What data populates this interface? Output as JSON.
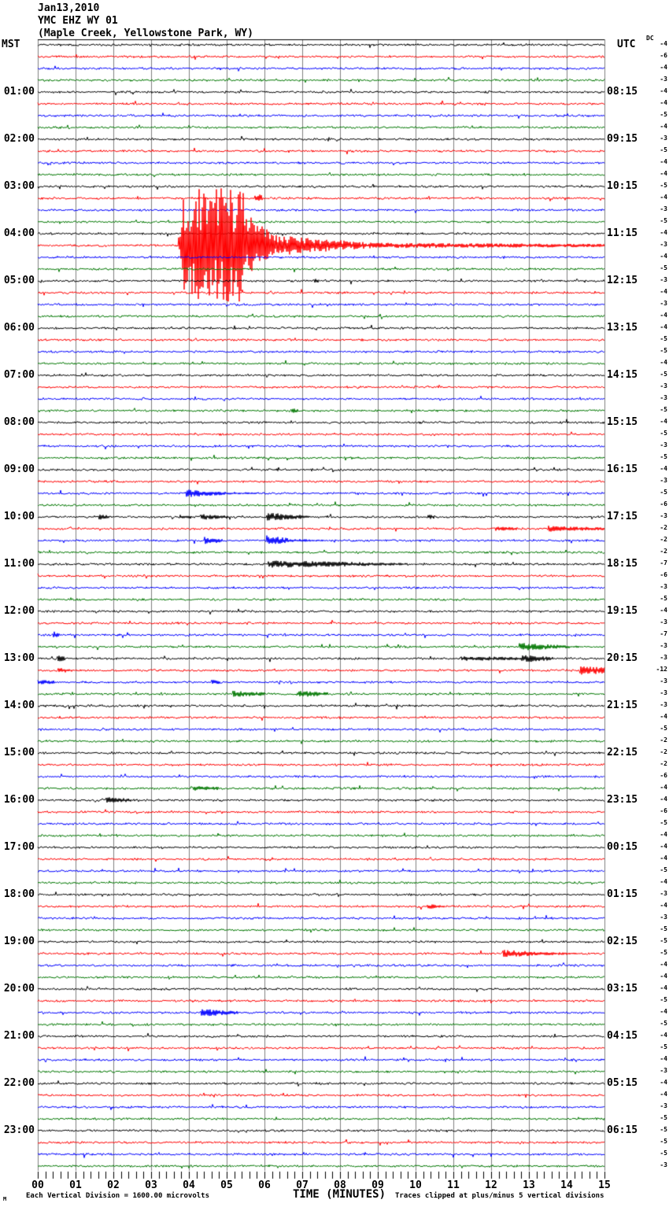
{
  "header": {
    "date": "Jan13,2010",
    "station": "YMC EHZ WY 01",
    "location": "(Maple Creek, Yellowstone Park, WY)",
    "left_tz": "MST",
    "right_tz": "UTC",
    "dc_label": "DC"
  },
  "footer": {
    "mark": "M",
    "scale_note": "Each Vertical Division = 1600.00 microvolts",
    "xaxis_title": "TIME (MINUTES)",
    "clip_note": "Traces clipped at plus/minus 5 vertical divisions"
  },
  "chart_data": {
    "type": "line",
    "subtype": "helicorder",
    "title": "YMC EHZ WY 01 (Maple Creek, Yellowstone Park, WY) Jan13,2010",
    "xlabel": "TIME (MINUTES)",
    "x_range_minutes": [
      0,
      15
    ],
    "minutes_per_row": 15,
    "rows_per_hour": 4,
    "row_count": 96,
    "clip_divisions": 5,
    "microvolts_per_division": 1600,
    "grid_on": true,
    "grid_color": "#7f7f7f",
    "trace_color_cycle": [
      "#000000",
      "#ff0000",
      "#0000ff",
      "#007700"
    ],
    "minute_labels": [
      "00",
      "01",
      "02",
      "03",
      "04",
      "05",
      "06",
      "07",
      "08",
      "09",
      "10",
      "11",
      "12",
      "13",
      "14",
      "15"
    ],
    "mst_labels": [
      "01:00",
      "02:00",
      "03:00",
      "04:00",
      "05:00",
      "06:00",
      "07:00",
      "08:00",
      "09:00",
      "10:00",
      "11:00",
      "12:00",
      "13:00",
      "14:00",
      "15:00",
      "16:00",
      "17:00",
      "18:00",
      "19:00",
      "20:00",
      "21:00",
      "22:00",
      "23:00"
    ],
    "utc_labels": [
      "08:15",
      "09:15",
      "10:15",
      "11:15",
      "12:15",
      "13:15",
      "14:15",
      "15:15",
      "16:15",
      "17:15",
      "18:15",
      "19:15",
      "20:15",
      "21:15",
      "22:15",
      "23:15",
      "00:15",
      "01:15",
      "02:15",
      "03:15",
      "04:15",
      "05:15",
      "06:15"
    ],
    "dc_offsets": [
      -4,
      -6,
      -4,
      -3,
      -4,
      -4,
      -5,
      -4,
      -3,
      -5,
      -4,
      -4,
      -5,
      -4,
      -3,
      -5,
      -4,
      -3,
      -4,
      -5,
      -3,
      -4,
      -3,
      -4,
      -4,
      -5,
      -5,
      -4,
      -5,
      -3,
      -3,
      -5,
      -4,
      -5,
      -3,
      -5,
      -4,
      -3,
      -5,
      -6,
      -3,
      -2,
      -2,
      -2,
      -7,
      -6,
      -3,
      -5,
      -4,
      -3,
      -7,
      -3,
      -3,
      -12,
      -3,
      -3,
      -3,
      -4,
      -5,
      -2,
      -2,
      -2,
      -6,
      -4,
      -4,
      -6,
      -5,
      -4,
      -4,
      -4,
      -5,
      -4,
      -3,
      -4,
      -3,
      -5,
      -5,
      -5,
      -4,
      -4,
      -4,
      -5,
      -4,
      -5,
      -4,
      -5,
      -4,
      -3,
      -4,
      -4,
      -3,
      -5,
      -5,
      -5,
      -5,
      -3
    ],
    "main_event": {
      "row": 17,
      "mst_time": "04:15",
      "utc_time": "11:15",
      "description": "Large clipped earthquake starting ~minute 3.8, coda decaying to end of row"
    },
    "events": [
      {
        "row": 13,
        "m0": 5.75,
        "m1": 5.95,
        "a0": 6,
        "a1": 5
      },
      {
        "row": 17,
        "m0": 3.72,
        "m1": 3.85,
        "a0": 8,
        "a1": 45
      },
      {
        "row": 17,
        "m0": 3.85,
        "m1": 5.45,
        "a0": 75,
        "a1": 75,
        "clip": true
      },
      {
        "row": 17,
        "m0": 5.45,
        "m1": 6.3,
        "a0": 42,
        "a1": 14
      },
      {
        "row": 17,
        "m0": 6.3,
        "m1": 8.7,
        "a0": 13,
        "a1": 4
      },
      {
        "row": 17,
        "m0": 8.7,
        "m1": 15,
        "a0": 3.5,
        "a1": 2
      },
      {
        "row": 20,
        "m0": 7.3,
        "m1": 7.45,
        "a0": 3,
        "a1": 2
      },
      {
        "row": 31,
        "m0": 6.7,
        "m1": 6.9,
        "a0": 3,
        "a1": 2
      },
      {
        "row": 38,
        "m0": 3.9,
        "m1": 4.9,
        "a0": 5,
        "a1": 2
      },
      {
        "row": 38,
        "m0": 4.9,
        "m1": 5.8,
        "a0": 2,
        "a1": 1
      },
      {
        "row": 40,
        "m0": 1.6,
        "m1": 1.9,
        "a0": 4,
        "a1": 2
      },
      {
        "row": 40,
        "m0": 3.75,
        "m1": 4.1,
        "a0": 3,
        "a1": 2
      },
      {
        "row": 40,
        "m0": 4.3,
        "m1": 5.05,
        "a0": 4,
        "a1": 2
      },
      {
        "row": 40,
        "m0": 6.05,
        "m1": 6.7,
        "a0": 6,
        "a1": 3
      },
      {
        "row": 40,
        "m0": 6.7,
        "m1": 7.2,
        "a0": 3,
        "a1": 2
      },
      {
        "row": 40,
        "m0": 10.3,
        "m1": 10.5,
        "a0": 3,
        "a1": 2
      },
      {
        "row": 41,
        "m0": 12.1,
        "m1": 12.7,
        "a0": 2.5,
        "a1": 2
      },
      {
        "row": 41,
        "m0": 13.5,
        "m1": 14.2,
        "a0": 4,
        "a1": 2.5
      },
      {
        "row": 41,
        "m0": 14.2,
        "m1": 15,
        "a0": 2.5,
        "a1": 2
      },
      {
        "row": 42,
        "m0": 4.4,
        "m1": 4.9,
        "a0": 5,
        "a1": 2
      },
      {
        "row": 42,
        "m0": 6.05,
        "m1": 6.8,
        "a0": 7,
        "a1": 2
      },
      {
        "row": 42,
        "m0": 6.8,
        "m1": 7.6,
        "a0": 2,
        "a1": 1
      },
      {
        "row": 44,
        "m0": 6.1,
        "m1": 8.8,
        "a0": 4.5,
        "a1": 2.5
      },
      {
        "row": 44,
        "m0": 8.8,
        "m1": 9.8,
        "a0": 2,
        "a1": 1.5
      },
      {
        "row": 50,
        "m0": 0.38,
        "m1": 0.58,
        "a0": 5,
        "a1": 3
      },
      {
        "row": 51,
        "m0": 12.75,
        "m1": 13.9,
        "a0": 5,
        "a1": 2
      },
      {
        "row": 51,
        "m0": 13.9,
        "m1": 14.4,
        "a0": 2,
        "a1": 1
      },
      {
        "row": 52,
        "m0": 0.52,
        "m1": 0.72,
        "a0": 4,
        "a1": 3
      },
      {
        "row": 52,
        "m0": 11.2,
        "m1": 12.8,
        "a0": 3,
        "a1": 2
      },
      {
        "row": 52,
        "m0": 12.8,
        "m1": 13.65,
        "a0": 5,
        "a1": 2
      },
      {
        "row": 53,
        "m0": 0.54,
        "m1": 0.92,
        "a0": 3,
        "a1": 2
      },
      {
        "row": 53,
        "m0": 14.35,
        "m1": 15,
        "a0": 6,
        "a1": 4
      },
      {
        "row": 54,
        "m0": 0.0,
        "m1": 0.45,
        "a0": 3,
        "a1": 2
      },
      {
        "row": 54,
        "m0": 4.6,
        "m1": 4.85,
        "a0": 3,
        "a1": 2
      },
      {
        "row": 55,
        "m0": 5.15,
        "m1": 6.0,
        "a0": 4,
        "a1": 2
      },
      {
        "row": 55,
        "m0": 6.85,
        "m1": 7.7,
        "a0": 4,
        "a1": 2
      },
      {
        "row": 63,
        "m0": 4.1,
        "m1": 4.8,
        "a0": 3,
        "a1": 2
      },
      {
        "row": 64,
        "m0": 1.8,
        "m1": 2.5,
        "a0": 4,
        "a1": 2
      },
      {
        "row": 73,
        "m0": 10.3,
        "m1": 10.8,
        "a0": 3,
        "a1": 2
      },
      {
        "row": 77,
        "m0": 12.3,
        "m1": 13.5,
        "a0": 5,
        "a1": 2
      },
      {
        "row": 77,
        "m0": 13.5,
        "m1": 14.3,
        "a0": 2,
        "a1": 1
      },
      {
        "row": 82,
        "m0": 4.3,
        "m1": 5.3,
        "a0": 5,
        "a1": 2
      }
    ]
  }
}
